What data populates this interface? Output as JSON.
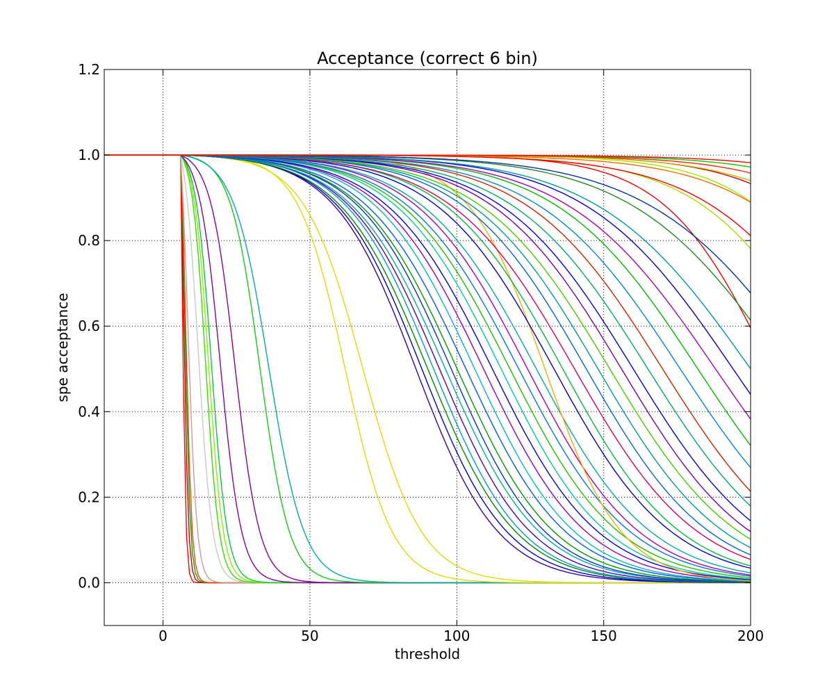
{
  "chart_data": {
    "type": "line",
    "title": "Acceptance (correct 6 bin)",
    "xlabel": "threshold",
    "ylabel": "spe acceptance",
    "xlim": [
      -20,
      200
    ],
    "ylim": [
      -0.1,
      1.2
    ],
    "xticks": [
      0,
      50,
      100,
      150,
      200
    ],
    "xtick_labels": [
      "0",
      "50",
      "100",
      "150",
      "200"
    ],
    "yticks": [
      0.0,
      0.2,
      0.4,
      0.6,
      0.8,
      1.0,
      1.2
    ],
    "ytick_labels": [
      "0.0",
      "0.2",
      "0.4",
      "0.6",
      "0.8",
      "1.0",
      "1.2"
    ],
    "grid": true,
    "legend": "none",
    "series_note": "many overlapping curves; each modeled as a logistic drop from 1.0 toward 0.0",
    "series": [
      {
        "mid": 6.5,
        "width": 0.6,
        "color": "#ff0000"
      },
      {
        "mid": 7.0,
        "width": 0.8,
        "color": "#cc0000"
      },
      {
        "mid": 7.5,
        "width": 0.9,
        "color": "#00aa00"
      },
      {
        "mid": 7.8,
        "width": 1.0,
        "color": "#ff4400"
      },
      {
        "mid": 8.5,
        "width": 1.5,
        "color": "#cc9999"
      },
      {
        "mid": 12.0,
        "width": 2.4,
        "color": "#c8c8c8"
      },
      {
        "mid": 14.5,
        "width": 2.3,
        "color": "#33dd00"
      },
      {
        "mid": 15.5,
        "width": 2.5,
        "color": "#88ee00"
      },
      {
        "mid": 16.5,
        "width": 2.7,
        "color": "#00cc33"
      },
      {
        "mid": 19.5,
        "width": 3.6,
        "color": "#880099"
      },
      {
        "mid": 24.5,
        "width": 4.2,
        "color": "#880099"
      },
      {
        "mid": 33.0,
        "width": 5.0,
        "color": "#11cc11"
      },
      {
        "mid": 36.0,
        "width": 6.0,
        "color": "#00aaaa"
      },
      {
        "mid": 62.0,
        "width": 8.0,
        "color": "#dddd00"
      },
      {
        "mid": 68.0,
        "width": 10.0,
        "color": "#dddd00"
      },
      {
        "mid": 86.0,
        "width": 14.0,
        "color": "#330099"
      },
      {
        "mid": 88.0,
        "width": 14.5,
        "color": "#0000cc"
      },
      {
        "mid": 90.0,
        "width": 15.0,
        "color": "#008800"
      },
      {
        "mid": 92.0,
        "width": 15.0,
        "color": "#0099cc"
      },
      {
        "mid": 94.0,
        "width": 15.5,
        "color": "#5500aa"
      },
      {
        "mid": 96.0,
        "width": 16.0,
        "color": "#00aaaa"
      },
      {
        "mid": 98.0,
        "width": 16.0,
        "color": "#0033cc"
      },
      {
        "mid": 100.0,
        "width": 16.5,
        "color": "#009900"
      },
      {
        "mid": 103.0,
        "width": 17.0,
        "color": "#0055ff"
      },
      {
        "mid": 106.0,
        "width": 17.0,
        "color": "#00bbbb"
      },
      {
        "mid": 109.0,
        "width": 17.5,
        "color": "#9900aa"
      },
      {
        "mid": 112.0,
        "width": 18.0,
        "color": "#0000dd"
      },
      {
        "mid": 115.0,
        "width": 18.0,
        "color": "#00cc99"
      },
      {
        "mid": 118.0,
        "width": 18.5,
        "color": "#22bb00"
      },
      {
        "mid": 121.0,
        "width": 19.0,
        "color": "#0077dd"
      },
      {
        "mid": 124.0,
        "width": 19.0,
        "color": "#aa00aa"
      },
      {
        "mid": 127.0,
        "width": 19.5,
        "color": "#00aaaa"
      },
      {
        "mid": 130.0,
        "width": 13.0,
        "color": "#ffaa00"
      },
      {
        "mid": 133.0,
        "width": 20.0,
        "color": "#0000cc"
      },
      {
        "mid": 136.0,
        "width": 20.0,
        "color": "#00bb44"
      },
      {
        "mid": 140.0,
        "width": 21.0,
        "color": "#dd0055"
      },
      {
        "mid": 144.0,
        "width": 21.0,
        "color": "#0066cc"
      },
      {
        "mid": 148.0,
        "width": 21.5,
        "color": "#009999"
      },
      {
        "mid": 152.0,
        "width": 22.0,
        "color": "#44cc00"
      },
      {
        "mid": 156.0,
        "width": 22.0,
        "color": "#7700aa"
      },
      {
        "mid": 160.0,
        "width": 22.5,
        "color": "#0000ee"
      },
      {
        "mid": 165.0,
        "width": 23.0,
        "color": "#00aa66"
      },
      {
        "mid": 170.0,
        "width": 23.0,
        "color": "#cc2200"
      },
      {
        "mid": 176.0,
        "width": 24.0,
        "color": "#0088cc"
      },
      {
        "mid": 182.0,
        "width": 24.0,
        "color": "#00bb00"
      },
      {
        "mid": 188.0,
        "width": 25.0,
        "color": "#aa00aa"
      },
      {
        "mid": 194.0,
        "width": 25.0,
        "color": "#0000cc"
      },
      {
        "mid": 200.0,
        "width": 26.0,
        "color": "#009999"
      },
      {
        "mid": 207.0,
        "width": 18.0,
        "color": "#ee0000"
      },
      {
        "mid": 212.0,
        "width": 26.0,
        "color": "#228822"
      },
      {
        "mid": 220.0,
        "width": 27.0,
        "color": "#0033aa"
      },
      {
        "mid": 228.0,
        "width": 22.0,
        "color": "#aadd00"
      },
      {
        "mid": 235.0,
        "width": 24.0,
        "color": "#ee0000"
      },
      {
        "mid": 242.0,
        "width": 20.0,
        "color": "#99ee00"
      },
      {
        "mid": 250.0,
        "width": 24.0,
        "color": "#ff6600"
      },
      {
        "mid": 258.0,
        "width": 22.0,
        "color": "#cc0000"
      },
      {
        "mid": 266.0,
        "width": 24.0,
        "color": "#bbbb00"
      },
      {
        "mid": 275.0,
        "width": 24.0,
        "color": "#ff2200"
      },
      {
        "mid": 285.0,
        "width": 24.0,
        "color": "#00cc00"
      },
      {
        "mid": 300.0,
        "width": 25.0,
        "color": "#ff0000"
      }
    ]
  }
}
